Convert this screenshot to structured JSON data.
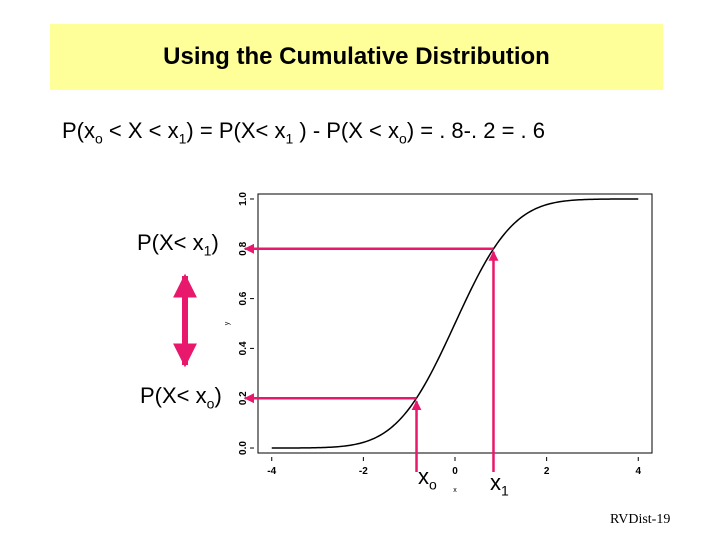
{
  "title": "Using the Cumulative Distribution",
  "formula": {
    "p_open": "P(x",
    "sub_o": "o",
    "lt_x_lt": " < X < x",
    "sub_1": "1",
    "eq_p": ") = P(X< x",
    "sub_1b": "1",
    "minus_p": " ) - P(X < x",
    "sub_o2": "o",
    "result": ") = . 8-. 2 = . 6"
  },
  "labels": {
    "px1_main": "P(X< x",
    "px1_sub": "1",
    "px1_close": ")",
    "pxo_main": "P(X< x",
    "pxo_sub": "o",
    "pxo_close": ")",
    "xo_main": "x",
    "xo_sub": "o",
    "x1_main": "x",
    "x1_sub": "1"
  },
  "colors": {
    "accent": "#e8186c",
    "title_bg": "#ffff99",
    "curve": "#000000"
  },
  "footer": "RVDist-19",
  "chart_data": {
    "type": "line",
    "title": "",
    "xlabel": "x",
    "ylabel": "y",
    "xlim": [
      -4.3,
      4.3
    ],
    "ylim": [
      -0.02,
      1.02
    ],
    "x_ticks": [
      -4,
      -2,
      0,
      2,
      4
    ],
    "y_ticks": [
      0.0,
      0.2,
      0.4,
      0.6,
      0.8,
      1.0
    ],
    "x_tick_labels": [
      "-4",
      "-2",
      "0",
      "2",
      "4"
    ],
    "y_tick_labels": [
      "0.0",
      "0.2",
      "0.4",
      "0.6",
      "0.8",
      "1.0"
    ],
    "series": [
      {
        "function": "standard normal CDF",
        "x_from": -4,
        "x_to": 4
      }
    ],
    "annotations": [
      {
        "x": -0.84,
        "p": 0.2
      },
      {
        "x": 0.84,
        "p": 0.8
      }
    ]
  }
}
